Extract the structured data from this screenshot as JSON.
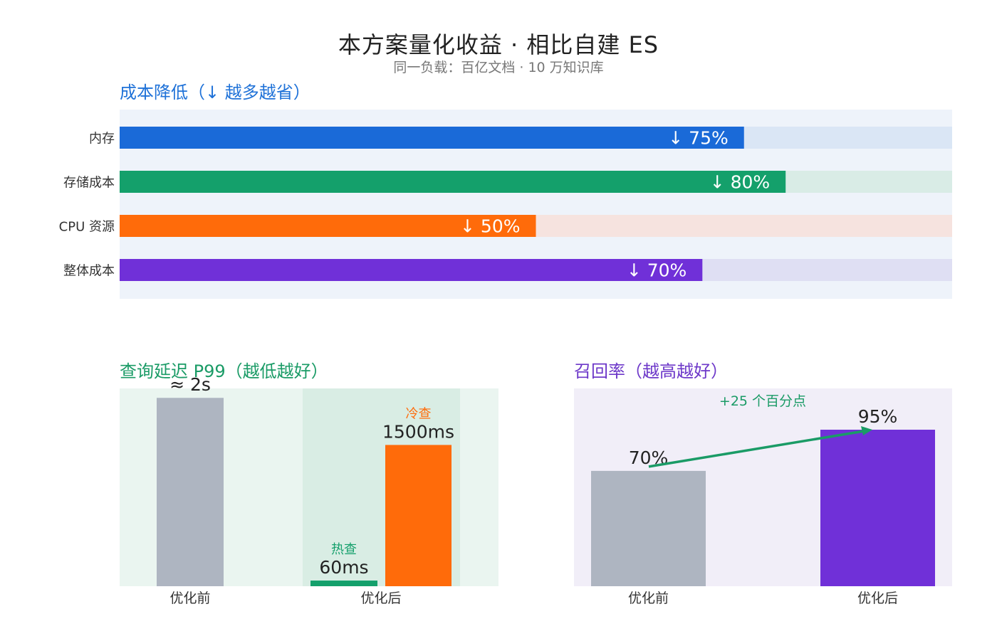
{
  "title": "本方案量化收益 · 相比自建 ES",
  "subtitle": "同一负载：百亿文档 · 10 万知识库",
  "colors": {
    "blue": "#1a6ad8",
    "green": "#14a06b",
    "orange": "#ff6b0a",
    "purple": "#7030d8",
    "gray": "#aeb5c1",
    "arrow_green": "#1a9b66"
  },
  "cost_chart": {
    "section_title": "成本降低（↓ 越多越省）",
    "chart_data": {
      "type": "bar",
      "orientation": "horizontal",
      "categories": [
        "内存",
        "存储成本",
        "CPU 资源",
        "整体成本"
      ],
      "values": [
        75,
        80,
        50,
        70
      ],
      "labels": [
        "↓ 75%",
        "↓ 80%",
        "↓ 50%",
        "↓ 70%"
      ],
      "colors": [
        "#1a6ad8",
        "#14a06b",
        "#ff6b0a",
        "#7030d8"
      ],
      "track_colors": [
        "#dae6f5",
        "#d9ece6",
        "#f6e3df",
        "#dfdff3"
      ],
      "xlim": [
        0,
        100
      ]
    }
  },
  "latency_chart": {
    "section_title": "查询延迟 P99（越低越好）",
    "chart_data": {
      "type": "bar",
      "categories": [
        "优化前",
        "优化后"
      ],
      "bars": [
        {
          "category": "优化前",
          "label": "≈ 2s",
          "value": 2000,
          "color": "#aeb5c1",
          "tag": ""
        },
        {
          "category": "优化后",
          "label": "60ms",
          "value": 60,
          "color": "#14a06b",
          "tag": "热查"
        },
        {
          "category": "优化后",
          "label": "1500ms",
          "value": 1500,
          "color": "#ff6b0a",
          "tag": "冷查"
        }
      ],
      "ylim": [
        0,
        2100
      ]
    }
  },
  "recall_chart": {
    "section_title": "召回率（越高越好）",
    "chart_data": {
      "type": "bar",
      "categories": [
        "优化前",
        "优化后"
      ],
      "values": [
        70,
        95
      ],
      "labels": [
        "70%",
        "95%"
      ],
      "colors": [
        "#aeb5c1",
        "#7030d8"
      ],
      "annotation": "+25 个百分点",
      "ylim": [
        0,
        100
      ]
    }
  }
}
